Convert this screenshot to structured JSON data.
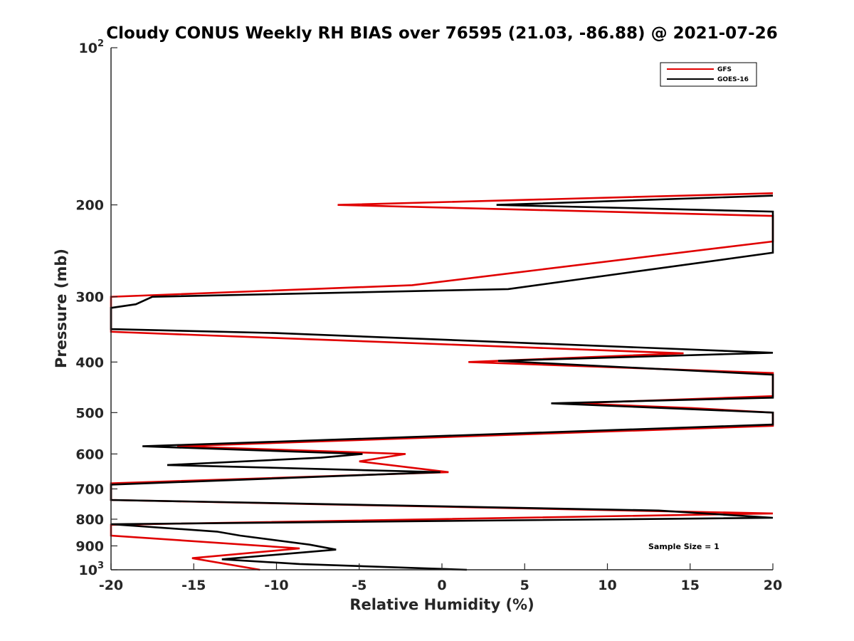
{
  "chart_data": {
    "type": "line",
    "title": "Cloudy CONUS Weekly RH BIAS over 76595 (21.03, -86.88) @ 2021-07-26",
    "xlabel": "Relative Humidity (%)",
    "ylabel": "Pressure (mb)",
    "xlim": [
      -20,
      20
    ],
    "ylim": [
      100,
      1000
    ],
    "yscale": "log",
    "yreverse": true,
    "x_ticks": [
      -20,
      -15,
      -10,
      -5,
      0,
      5,
      10,
      15,
      20
    ],
    "x_tick_labels": [
      "-20",
      "-15",
      "-10",
      "-5",
      "0",
      "5",
      "10",
      "15",
      "20"
    ],
    "y_ticks": [
      200,
      300,
      400,
      500,
      600,
      700,
      800,
      900
    ],
    "y_tick_labels": [
      "200",
      "300",
      "400",
      "500",
      "600",
      "700",
      "800",
      "900"
    ],
    "y_log_ticks": [
      {
        "value": 100,
        "base": "10",
        "exp": "2"
      },
      {
        "value": 1000,
        "base": "10",
        "exp": "3"
      }
    ],
    "annotation": "Sample Size = 1",
    "legend_position": "top-right",
    "series": [
      {
        "name": "GFS",
        "color": "#e00000",
        "points": [
          [
            20,
            190
          ],
          [
            -6.3,
            200
          ],
          [
            20,
            210
          ],
          [
            20,
            235
          ],
          [
            -1.8,
            285
          ],
          [
            -20,
            300
          ],
          [
            -20,
            350
          ],
          [
            14.6,
            385
          ],
          [
            1.6,
            400
          ],
          [
            20,
            420
          ],
          [
            20,
            465
          ],
          [
            7.9,
            480
          ],
          [
            15.1,
            490
          ],
          [
            20,
            500
          ],
          [
            20,
            530
          ],
          [
            -16,
            580
          ],
          [
            -2.2,
            600
          ],
          [
            -5,
            620
          ],
          [
            0.4,
            650
          ],
          [
            -20,
            683
          ],
          [
            -20,
            735
          ],
          [
            20,
            780
          ],
          [
            -20,
            820
          ],
          [
            -20,
            860
          ],
          [
            -8.6,
            910
          ],
          [
            -15.1,
            950
          ],
          [
            -11,
            1000
          ]
        ]
      },
      {
        "name": "GOES-16",
        "color": "#000000",
        "points": [
          [
            20,
            192
          ],
          [
            3.3,
            200
          ],
          [
            20,
            206
          ],
          [
            20,
            247
          ],
          [
            4,
            290
          ],
          [
            -17.5,
            300
          ],
          [
            -18.5,
            310
          ],
          [
            -20,
            315
          ],
          [
            -20,
            346
          ],
          [
            -10.1,
            352
          ],
          [
            20,
            384
          ],
          [
            3.4,
            398
          ],
          [
            20,
            423
          ],
          [
            20,
            468
          ],
          [
            6.6,
            480
          ],
          [
            20,
            500
          ],
          [
            20,
            527
          ],
          [
            -18.1,
            580
          ],
          [
            -4.8,
            600
          ],
          [
            -7.3,
            610
          ],
          [
            -16.6,
            630
          ],
          [
            -0.1,
            650
          ],
          [
            -20,
            687
          ],
          [
            -20,
            735
          ],
          [
            13.1,
            770
          ],
          [
            20,
            795
          ],
          [
            -20,
            818
          ],
          [
            -13.6,
            845
          ],
          [
            -12.2,
            860
          ],
          [
            -8,
            895
          ],
          [
            -6.4,
            915
          ],
          [
            -13.3,
            955
          ],
          [
            -8.6,
            975
          ],
          [
            1.5,
            1000
          ]
        ]
      }
    ]
  }
}
